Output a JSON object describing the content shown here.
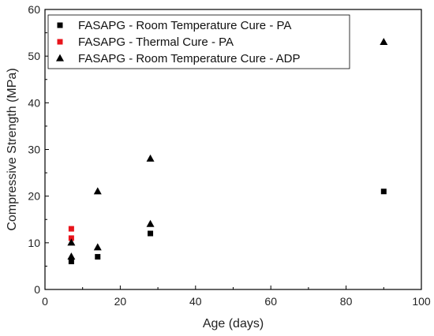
{
  "chart_data": {
    "type": "scatter",
    "xlabel": "Age (days)",
    "ylabel": "Compressive Strength (MPa)",
    "xlim": [
      0,
      100
    ],
    "ylim": [
      0,
      60
    ],
    "xticks": [
      0,
      20,
      40,
      60,
      80,
      100
    ],
    "yticks": [
      0,
      10,
      20,
      30,
      40,
      50,
      60
    ],
    "grid": false,
    "legend": "top-left",
    "series": [
      {
        "name": "FASAPG - Room Temperature Cure - PA",
        "marker": "square",
        "color": "#000000",
        "points": [
          [
            7,
            6
          ],
          [
            14,
            7
          ],
          [
            28,
            12
          ],
          [
            90,
            21
          ]
        ]
      },
      {
        "name": "FASAPG - Thermal Cure - PA",
        "marker": "square",
        "color": "#e8141b",
        "points": [
          [
            7,
            11
          ],
          [
            7,
            13
          ]
        ]
      },
      {
        "name": "FASAPG - Room Temperature Cure - ADP",
        "marker": "triangle",
        "color": "#000000",
        "points": [
          [
            7,
            7
          ],
          [
            7,
            10
          ],
          [
            14,
            9
          ],
          [
            14,
            21
          ],
          [
            28,
            14
          ],
          [
            28,
            28
          ],
          [
            90,
            53
          ]
        ]
      }
    ]
  }
}
